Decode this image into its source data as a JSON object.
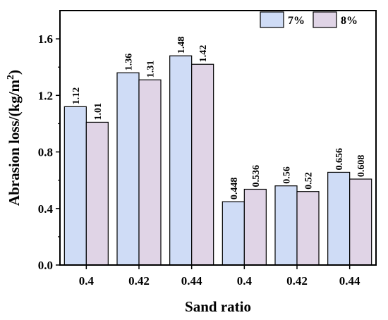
{
  "chart_data": {
    "type": "bar",
    "categories": [
      "0.4",
      "0.42",
      "0.44",
      "0.4",
      "0.42",
      "0.44"
    ],
    "series": [
      {
        "name": "7%",
        "values": [
          1.12,
          1.36,
          1.48,
          0.448,
          0.56,
          0.656
        ],
        "labels": [
          "1.12",
          "1.36",
          "1.48",
          "0.448",
          "0.56",
          "0.656"
        ],
        "color": "#cfdcf6"
      },
      {
        "name": "8%",
        "values": [
          1.01,
          1.31,
          1.42,
          0.536,
          0.52,
          0.608
        ],
        "labels": [
          "1.01",
          "1.31",
          "1.42",
          "0.536",
          "0.52",
          "0.608"
        ],
        "color": "#e0d4e6"
      }
    ],
    "xlabel": "Sand ratio",
    "ylabel": "Abrasion loss/(kg/m²)",
    "ylabel_main": "Abrasion loss/(kg/m",
    "ylabel_sup": "2",
    "ylabel_end": ")",
    "ylim": [
      0,
      1.8
    ],
    "yticks": [
      "0.0",
      "0.4",
      "0.8",
      "1.2",
      "1.6"
    ],
    "ytick_values": [
      0,
      0.4,
      0.8,
      1.2,
      1.6
    ],
    "legend_position": "top-right",
    "grid": false
  }
}
